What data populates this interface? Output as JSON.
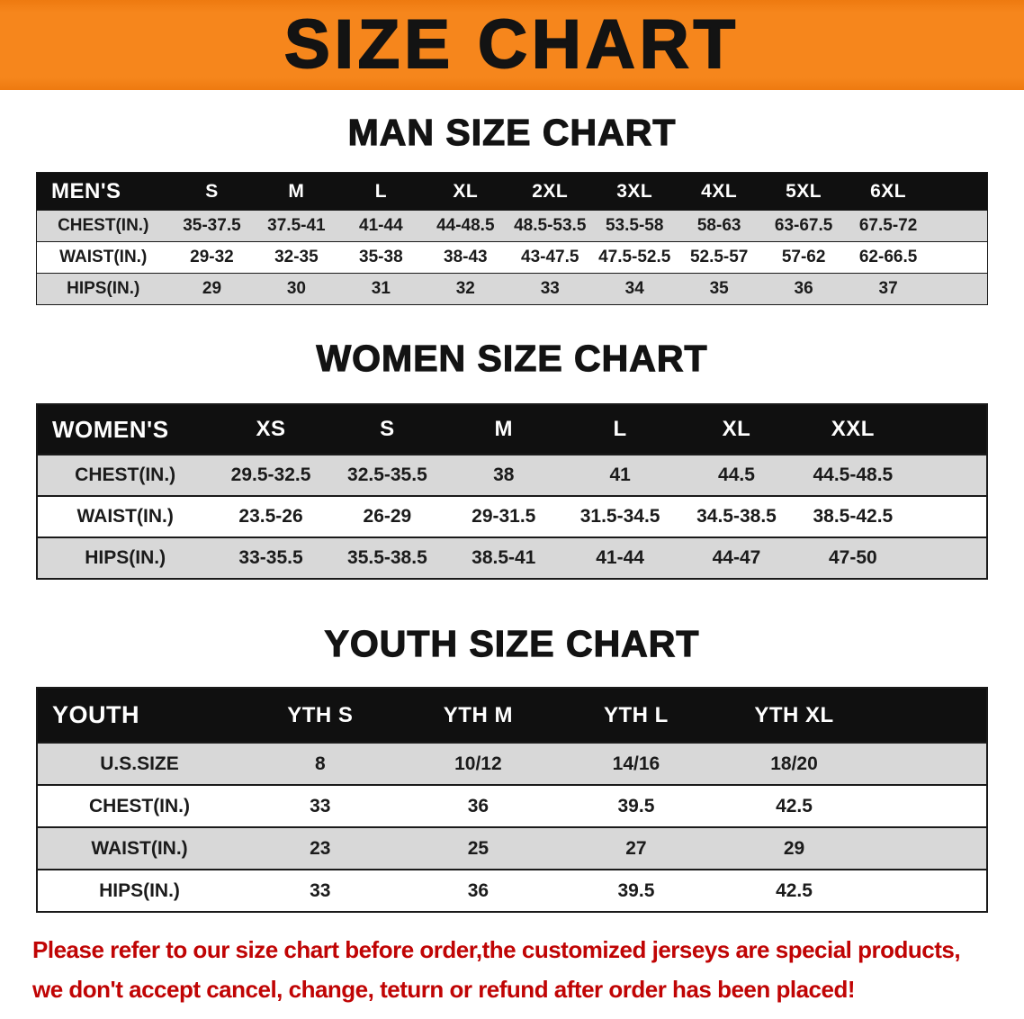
{
  "banner": {
    "title": "SIZE CHART"
  },
  "colors": {
    "banner-orange": "#F6861C",
    "banner-orange-dark": "#EE7A10",
    "header-black": "#101010",
    "row-gray": "#D8D8D8",
    "row-white": "#FFFFFF",
    "text-black": "#161616",
    "disclaimer-red": "#C00404"
  },
  "chart_data": [
    {
      "type": "table",
      "name": "men",
      "title": "MAN SIZE CHART",
      "columns": [
        "MEN'S",
        "S",
        "M",
        "L",
        "XL",
        "2XL",
        "3XL",
        "4XL",
        "5XL",
        "6XL"
      ],
      "rows": [
        [
          "CHEST(IN.)",
          "35-37.5",
          "37.5-41",
          "41-44",
          "44-48.5",
          "48.5-53.5",
          "53.5-58",
          "58-63",
          "63-67.5",
          "67.5-72"
        ],
        [
          "WAIST(IN.)",
          "29-32",
          "32-35",
          "35-38",
          "38-43",
          "43-47.5",
          "47.5-52.5",
          "52.5-57",
          "57-62",
          "62-66.5"
        ],
        [
          "HIPS(IN.)",
          "29",
          "30",
          "31",
          "32",
          "33",
          "34",
          "35",
          "36",
          "37"
        ]
      ]
    },
    {
      "type": "table",
      "name": "women",
      "title": "WOMEN SIZE CHART",
      "columns": [
        "WOMEN'S",
        "XS",
        "S",
        "M",
        "L",
        "XL",
        "XXL"
      ],
      "rows": [
        [
          "CHEST(IN.)",
          "29.5-32.5",
          "32.5-35.5",
          "38",
          "41",
          "44.5",
          "44.5-48.5"
        ],
        [
          "WAIST(IN.)",
          "23.5-26",
          "26-29",
          "29-31.5",
          "31.5-34.5",
          "34.5-38.5",
          "38.5-42.5"
        ],
        [
          "HIPS(IN.)",
          "33-35.5",
          "35.5-38.5",
          "38.5-41",
          "41-44",
          "44-47",
          "47-50"
        ]
      ]
    },
    {
      "type": "table",
      "name": "youth",
      "title": "YOUTH SIZE CHART",
      "columns": [
        "YOUTH",
        "YTH S",
        "YTH M",
        "YTH L",
        "YTH XL"
      ],
      "rows": [
        [
          "U.S.SIZE",
          "8",
          "10/12",
          "14/16",
          "18/20"
        ],
        [
          "CHEST(IN.)",
          "33",
          "36",
          "39.5",
          "42.5"
        ],
        [
          "WAIST(IN.)",
          "23",
          "25",
          "27",
          "29"
        ],
        [
          "HIPS(IN.)",
          "33",
          "36",
          "39.5",
          "42.5"
        ]
      ]
    }
  ],
  "disclaimer": {
    "line1": "Please refer to our size chart before order,the customized jerseys are special products,",
    "line2": "we don't accept cancel, change, teturn or refund after order has been placed!"
  }
}
